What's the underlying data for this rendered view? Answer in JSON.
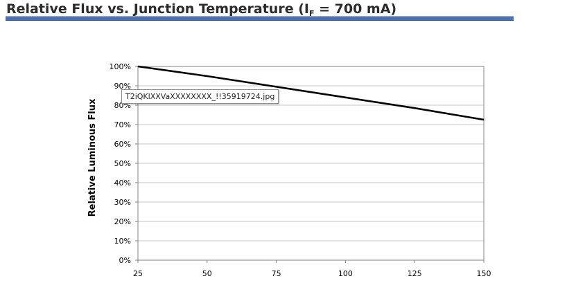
{
  "header": {
    "title_main": "Relative Flux vs. Junction Temperature (I",
    "title_sub": "F",
    "title_tail": " = 700 mA)"
  },
  "tooltip": {
    "text": "T2iQKlXXVaXXXXXXXX_!!35919724.jpg"
  },
  "colors": {
    "rule": "#4a72b8",
    "line": "#000000",
    "grid": "#c8c8c8"
  },
  "chart_data": {
    "type": "line",
    "title": "",
    "xlabel": "",
    "ylabel": "Relative Luminous Flux",
    "xlim": [
      25,
      150
    ],
    "ylim": [
      0,
      100
    ],
    "x_ticks": [
      25,
      50,
      75,
      100,
      125,
      150
    ],
    "y_ticks": [
      0,
      10,
      20,
      30,
      40,
      50,
      60,
      70,
      80,
      90,
      100
    ],
    "y_tick_suffix": "%",
    "grid": "horizontal",
    "legend": "none",
    "series": [
      {
        "x": [
          25,
          50,
          75,
          100,
          125,
          150
        ],
        "y": [
          100,
          95,
          89.5,
          84,
          78.5,
          72.5
        ]
      }
    ]
  }
}
